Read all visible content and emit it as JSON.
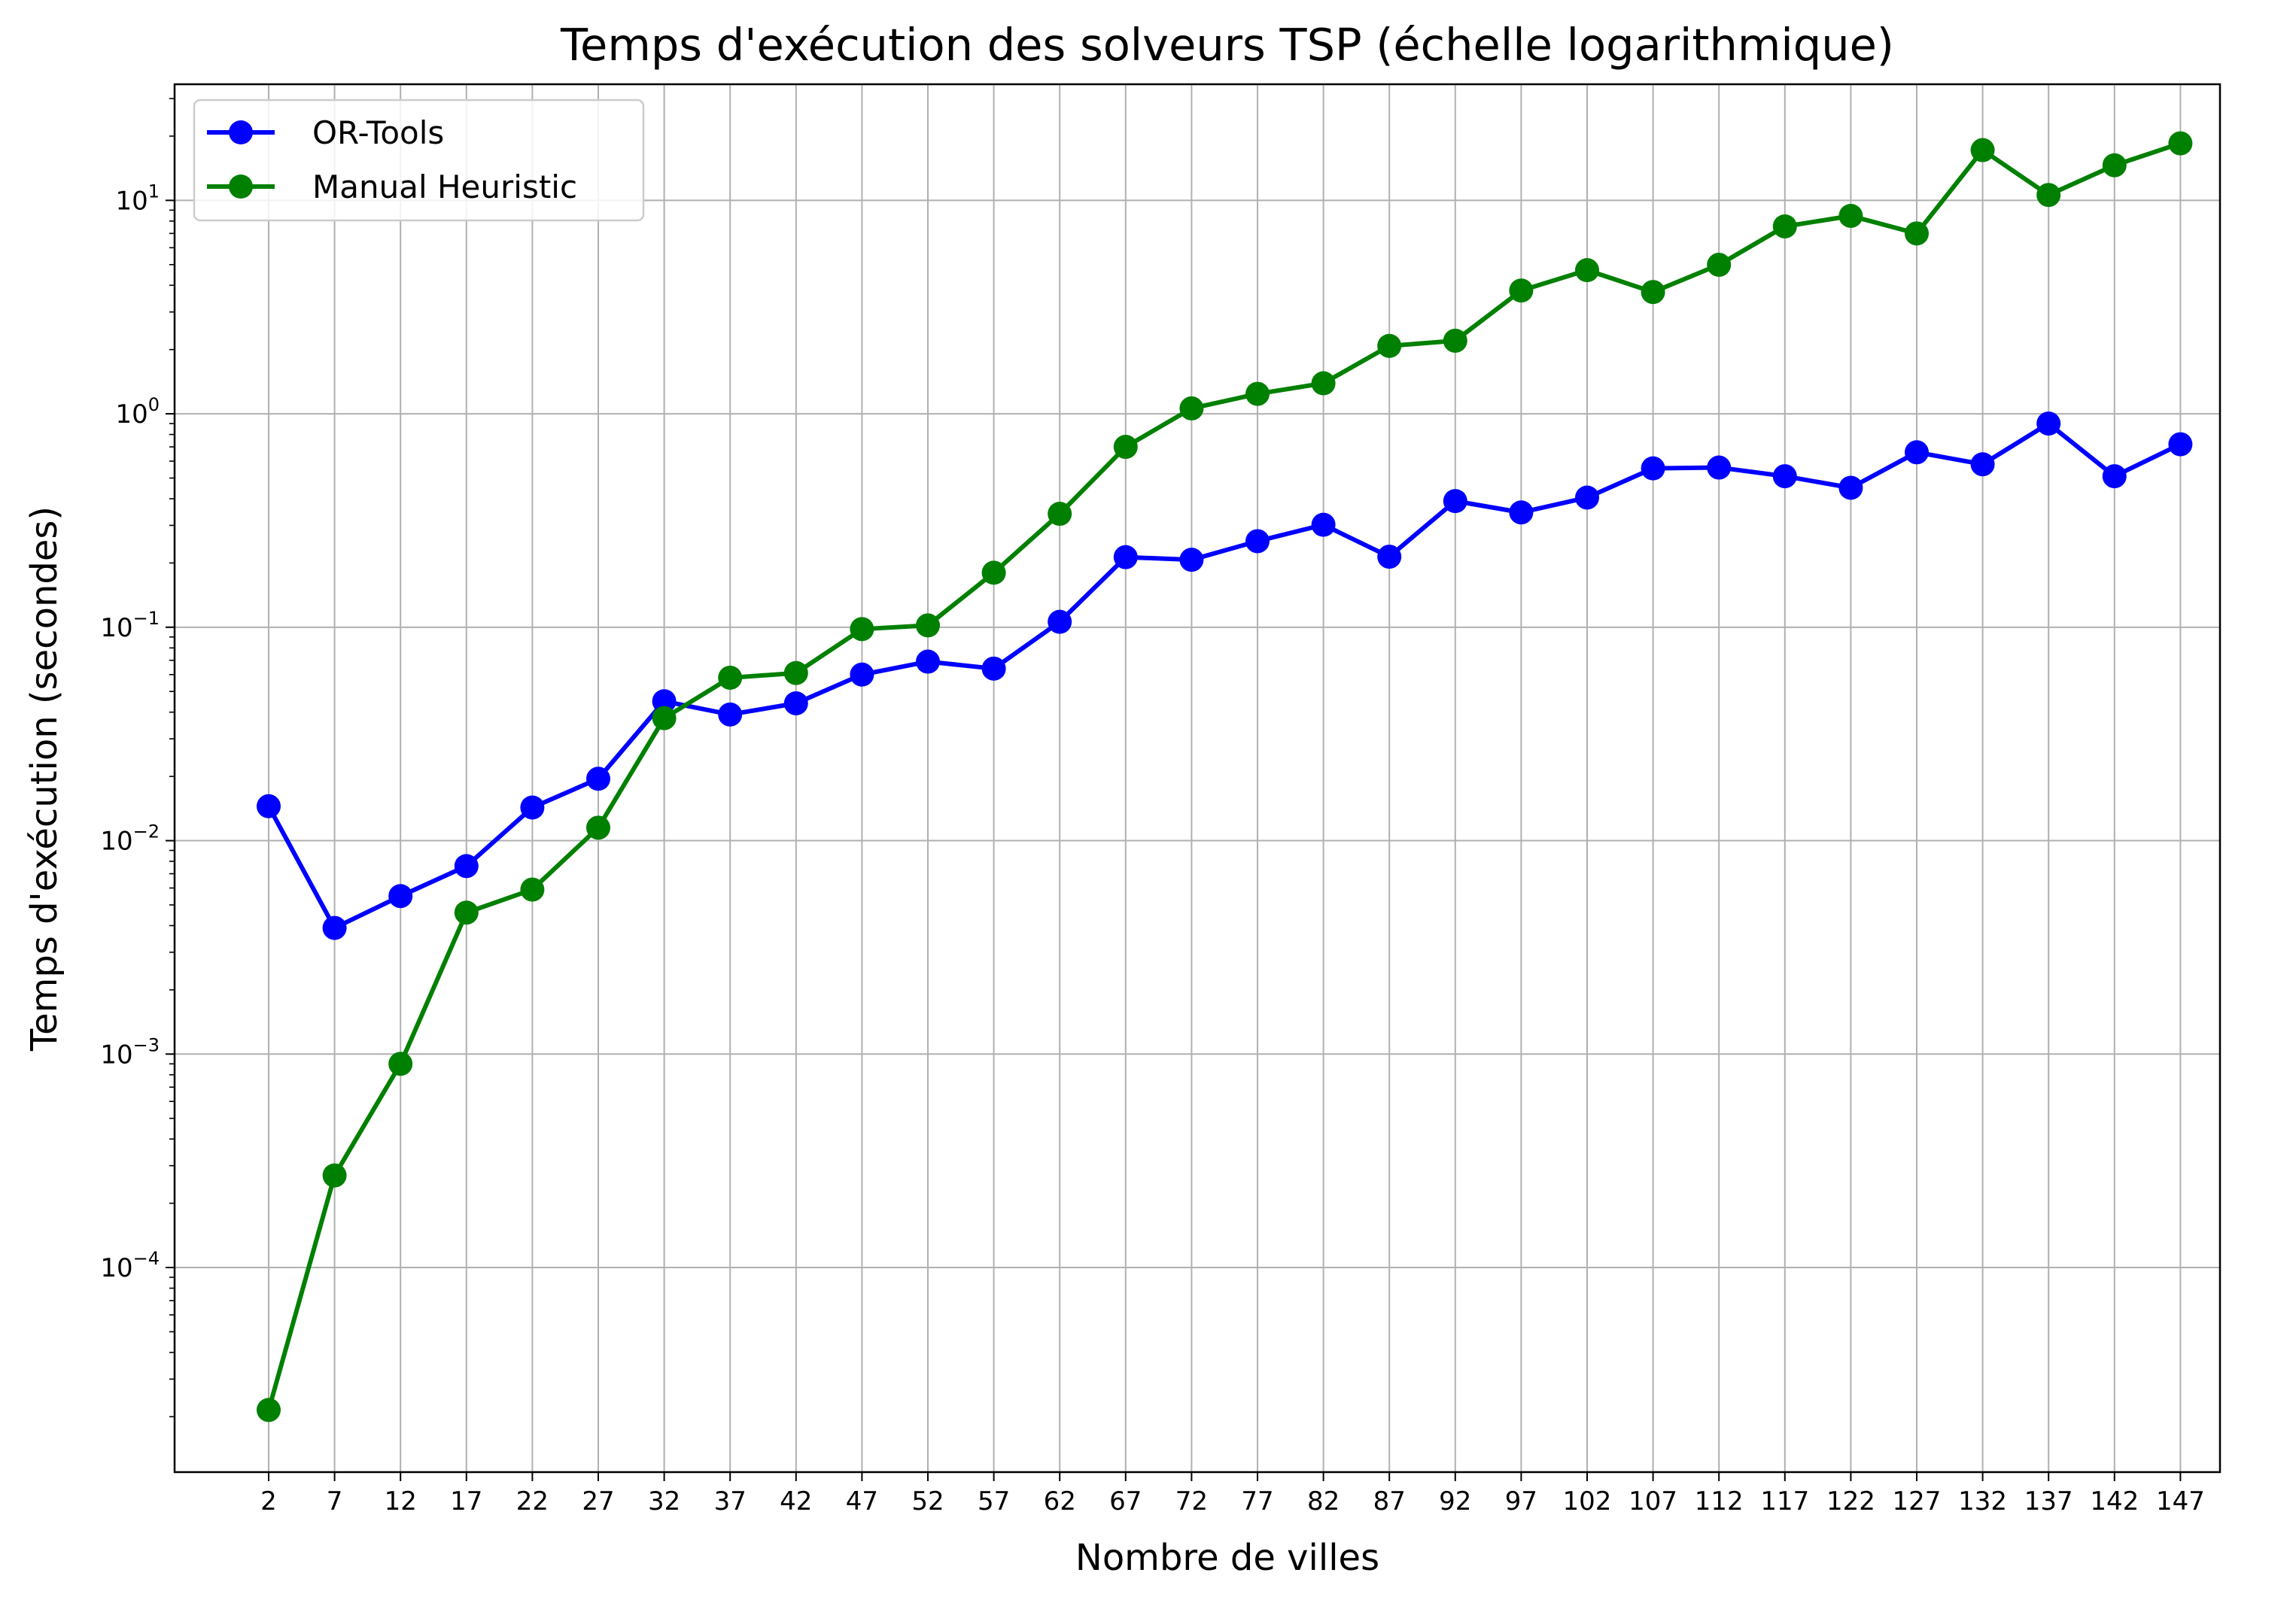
{
  "chart_data": {
    "type": "line",
    "title": "Temps d'exécution des solveurs TSP (échelle logarithmique)",
    "xlabel": "Nombre de villes",
    "ylabel": "Temps d'exécution (secondes)",
    "yscale": "log",
    "ylim": [
      1.1e-05,
      35
    ],
    "grid": true,
    "legend_position": "upper-left",
    "x": [
      2,
      7,
      12,
      17,
      22,
      27,
      32,
      37,
      42,
      47,
      52,
      57,
      62,
      67,
      72,
      77,
      82,
      87,
      92,
      97,
      102,
      107,
      112,
      117,
      122,
      127,
      132,
      137,
      142,
      147
    ],
    "x_tick_labels": [
      "2",
      "7",
      "12",
      "17",
      "22",
      "27",
      "32",
      "37",
      "42",
      "47",
      "52",
      "57",
      "62",
      "67",
      "72",
      "77",
      "82",
      "87",
      "92",
      "97",
      "102",
      "107",
      "112",
      "117",
      "122",
      "127",
      "132",
      "137",
      "142",
      "147"
    ],
    "y_ticks": [
      {
        "value": 0.0001,
        "base": "10",
        "exponent": "−4"
      },
      {
        "value": 0.001,
        "base": "10",
        "exponent": "−3"
      },
      {
        "value": 0.01,
        "base": "10",
        "exponent": "−2"
      },
      {
        "value": 0.1,
        "base": "10",
        "exponent": "−1"
      },
      {
        "value": 1,
        "base": "10",
        "exponent": "0"
      },
      {
        "value": 10,
        "base": "10",
        "exponent": "1"
      }
    ],
    "series": [
      {
        "name": "OR-Tools",
        "color": "#0000ff",
        "values": [
          0.0145,
          0.0039,
          0.0055,
          0.0076,
          0.0143,
          0.0195,
          0.045,
          0.039,
          0.044,
          0.06,
          0.069,
          0.064,
          0.106,
          0.213,
          0.207,
          0.253,
          0.302,
          0.214,
          0.39,
          0.345,
          0.405,
          0.555,
          0.56,
          0.51,
          0.45,
          0.66,
          0.58,
          0.9,
          0.51,
          0.72
        ]
      },
      {
        "name": "Manual Heuristic",
        "color": "#008000",
        "values": [
          2.15e-05,
          0.00027,
          0.0009,
          0.0046,
          0.0059,
          0.0115,
          0.0375,
          0.058,
          0.061,
          0.098,
          0.102,
          0.18,
          0.34,
          0.7,
          1.06,
          1.24,
          1.39,
          2.08,
          2.2,
          3.78,
          4.71,
          3.72,
          4.99,
          7.55,
          8.46,
          7.0,
          17.2,
          10.6,
          14.6,
          18.5
        ]
      }
    ]
  }
}
